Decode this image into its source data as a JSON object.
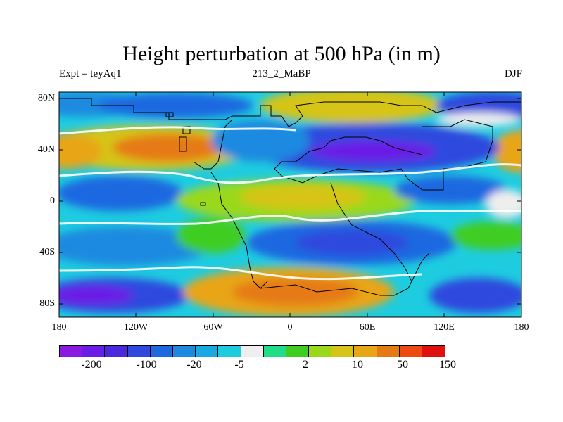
{
  "title": "Height perturbation at 500 hPa (in m)",
  "subtitle_left": "Expt = teyAq1",
  "subtitle_center": "213_2_MaBP",
  "subtitle_right": "DJF",
  "y_axis_labels": [
    "80N",
    "40N",
    "0",
    "40S",
    "80S"
  ],
  "x_axis_labels": [
    "180",
    "120W",
    "60W",
    "0",
    "60E",
    "120E",
    "180"
  ],
  "colorbar": {
    "colors": [
      "#8a1ae0",
      "#6a1de6",
      "#4a28dc",
      "#2f48de",
      "#1e68e0",
      "#1d8ae0",
      "#1aa9e0",
      "#1ecce0",
      "#eeeeee",
      "#22dd88",
      "#3fcd22",
      "#9ad81c",
      "#d6c418",
      "#e8a516",
      "#e57a14",
      "#ec4a10",
      "#e01010"
    ],
    "tick_labels": [
      "-200",
      "-100",
      "-20",
      "-5",
      "2",
      "10",
      "50",
      "150"
    ]
  }
}
